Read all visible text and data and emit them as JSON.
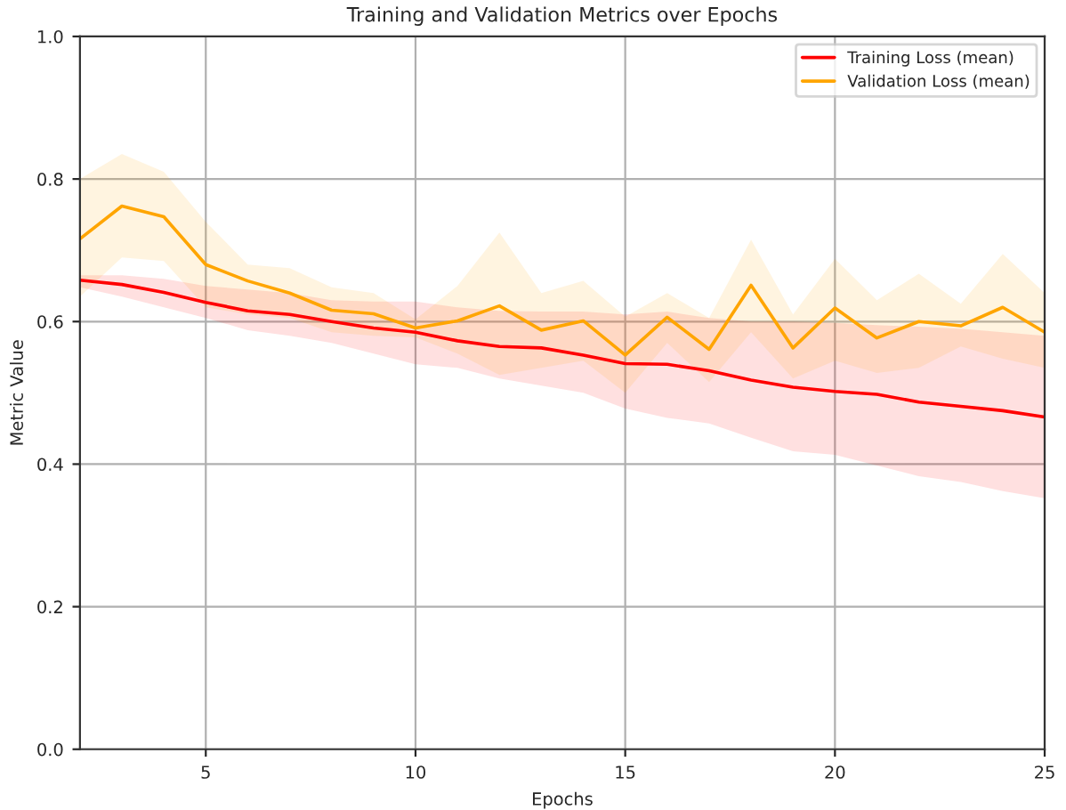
{
  "chart_data": {
    "type": "line",
    "title": "Training and Validation Metrics over Epochs",
    "xlabel": "Epochs",
    "ylabel": "Metric Value",
    "x": [
      2,
      3,
      4,
      5,
      6,
      7,
      8,
      9,
      10,
      11,
      12,
      13,
      14,
      15,
      16,
      17,
      18,
      19,
      20,
      21,
      22,
      23,
      24,
      25
    ],
    "series": [
      {
        "name": "Training Loss (mean)",
        "color": "#ff0000",
        "values": [
          0.658,
          0.652,
          0.641,
          0.627,
          0.615,
          0.61,
          0.6,
          0.591,
          0.585,
          0.573,
          0.565,
          0.563,
          0.553,
          0.541,
          0.54,
          0.531,
          0.518,
          0.508,
          0.502,
          0.498,
          0.487,
          0.481,
          0.475,
          0.466
        ],
        "upper": [
          0.665,
          0.665,
          0.66,
          0.65,
          0.645,
          0.64,
          0.63,
          0.628,
          0.628,
          0.62,
          0.615,
          0.614,
          0.614,
          0.61,
          0.614,
          0.605,
          0.6,
          0.6,
          0.598,
          0.595,
          0.593,
          0.59,
          0.585,
          0.58
        ],
        "lower": [
          0.648,
          0.635,
          0.62,
          0.605,
          0.588,
          0.58,
          0.57,
          0.555,
          0.54,
          0.535,
          0.52,
          0.51,
          0.5,
          0.478,
          0.465,
          0.457,
          0.437,
          0.418,
          0.413,
          0.398,
          0.383,
          0.375,
          0.362,
          0.352
        ]
      },
      {
        "name": "Validation Loss (mean)",
        "color": "#ffa500",
        "values": [
          0.716,
          0.762,
          0.747,
          0.68,
          0.657,
          0.64,
          0.616,
          0.611,
          0.591,
          0.601,
          0.622,
          0.588,
          0.601,
          0.553,
          0.606,
          0.561,
          0.651,
          0.563,
          0.619,
          0.577,
          0.6,
          0.594,
          0.62,
          0.585
        ],
        "upper": [
          0.8,
          0.835,
          0.81,
          0.74,
          0.68,
          0.675,
          0.648,
          0.64,
          0.603,
          0.65,
          0.725,
          0.64,
          0.657,
          0.607,
          0.64,
          0.605,
          0.715,
          0.61,
          0.688,
          0.63,
          0.667,
          0.625,
          0.695,
          0.64
        ],
        "lower": [
          0.635,
          0.69,
          0.685,
          0.62,
          0.61,
          0.605,
          0.585,
          0.58,
          0.578,
          0.555,
          0.525,
          0.535,
          0.545,
          0.5,
          0.57,
          0.515,
          0.585,
          0.52,
          0.545,
          0.528,
          0.535,
          0.565,
          0.548,
          0.535
        ]
      }
    ],
    "xlim": [
      2,
      25
    ],
    "xticks": [
      5,
      10,
      15,
      20,
      25
    ],
    "ylim": [
      0,
      1
    ],
    "yticks": [
      {
        "value": 0,
        "label": "0.0"
      },
      {
        "value": 0.2,
        "label": "0.2"
      },
      {
        "value": 0.4,
        "label": "0.4"
      },
      {
        "value": 0.6,
        "label": "0.6"
      },
      {
        "value": 0.8,
        "label": "0.8"
      },
      {
        "value": 1,
        "label": "1.0"
      }
    ],
    "grid": true,
    "legend": "top right"
  }
}
